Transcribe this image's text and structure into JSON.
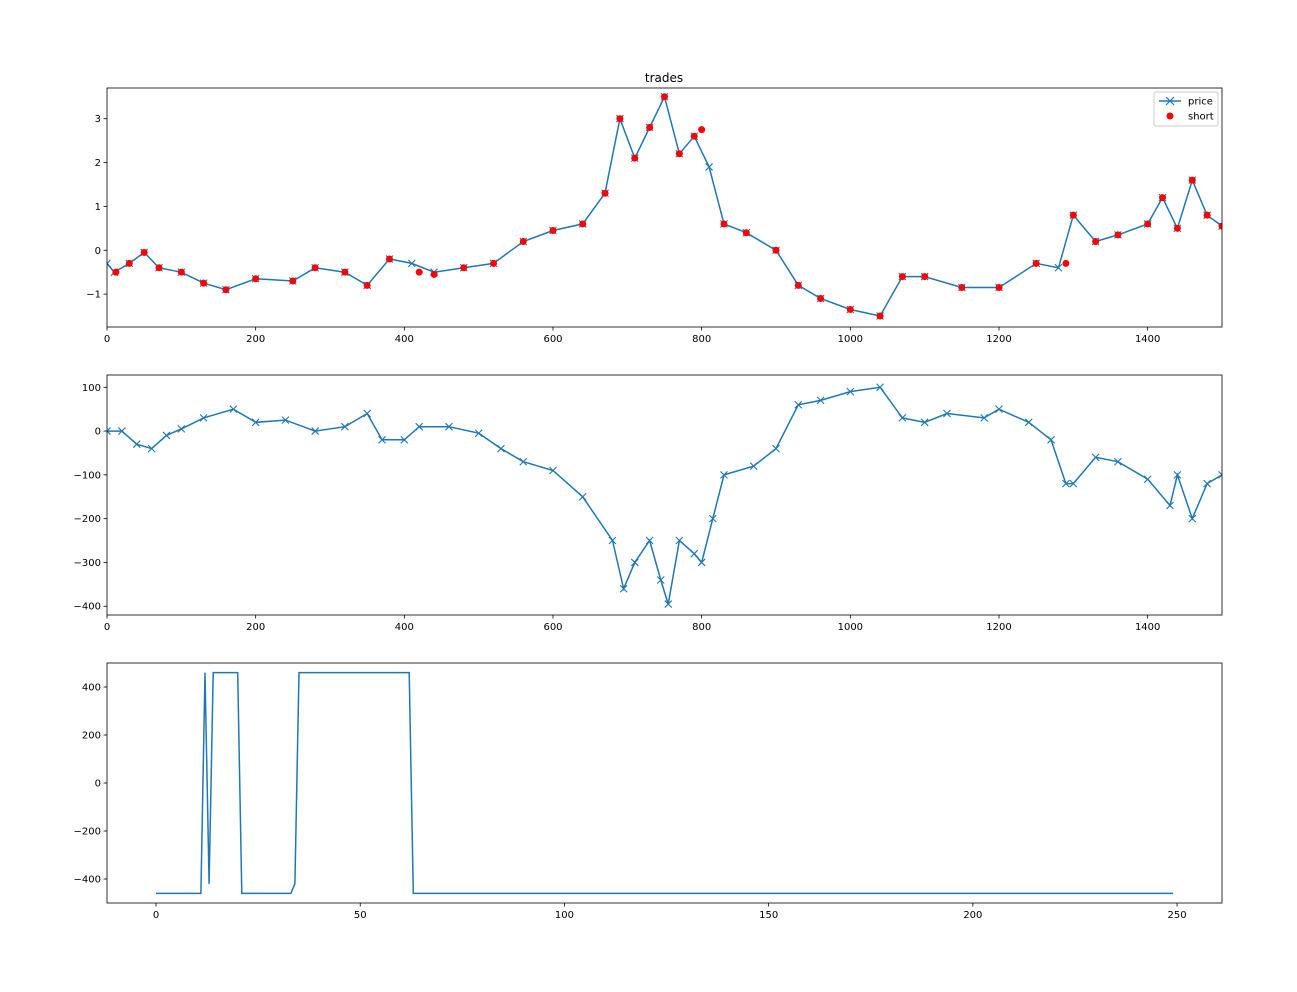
{
  "colors": {
    "price": "#1f77b4",
    "short": "#ff0000"
  },
  "chart_data": [
    {
      "type": "line",
      "title": "trades",
      "xlim": [
        0,
        1500
      ],
      "ylim": [
        -1.75,
        3.7
      ],
      "x_ticks": [
        0,
        200,
        400,
        600,
        800,
        1000,
        1200,
        1400
      ],
      "y_ticks": [
        -1,
        0,
        1,
        2,
        3
      ],
      "legend": {
        "placement": "top-right",
        "entries": [
          "price",
          "short"
        ]
      },
      "series": [
        {
          "name": "price",
          "style": "line-x",
          "x": [
            0,
            10,
            30,
            50,
            70,
            100,
            130,
            160,
            200,
            250,
            280,
            320,
            350,
            380,
            410,
            440,
            480,
            520,
            560,
            600,
            640,
            670,
            690,
            710,
            730,
            750,
            770,
            790,
            810,
            830,
            860,
            900,
            930,
            960,
            1000,
            1040,
            1070,
            1100,
            1150,
            1200,
            1250,
            1280,
            1300,
            1330,
            1360,
            1400,
            1420,
            1440,
            1460,
            1480,
            1500
          ],
          "y": [
            -0.3,
            -0.5,
            -0.3,
            -0.05,
            -0.4,
            -0.5,
            -0.75,
            -0.9,
            -0.65,
            -0.7,
            -0.4,
            -0.5,
            -0.8,
            -0.2,
            -0.3,
            -0.5,
            -0.4,
            -0.3,
            0.2,
            0.45,
            0.6,
            1.3,
            3.0,
            2.1,
            2.8,
            3.5,
            2.2,
            2.6,
            1.9,
            0.6,
            0.4,
            0.0,
            -0.8,
            -1.1,
            -1.35,
            -1.5,
            -0.6,
            -0.6,
            -0.85,
            -0.85,
            -0.3,
            -0.4,
            0.8,
            0.2,
            0.35,
            0.6,
            1.2,
            0.5,
            1.6,
            0.8,
            0.55
          ]
        },
        {
          "name": "short",
          "style": "markers-o",
          "x": [
            12,
            30,
            50,
            70,
            100,
            130,
            160,
            200,
            250,
            280,
            320,
            350,
            380,
            420,
            440,
            480,
            520,
            560,
            600,
            640,
            670,
            690,
            710,
            730,
            750,
            770,
            790,
            800,
            830,
            860,
            900,
            930,
            960,
            1000,
            1040,
            1070,
            1100,
            1150,
            1200,
            1250,
            1290,
            1300,
            1330,
            1360,
            1400,
            1420,
            1440,
            1460,
            1480,
            1500
          ],
          "y": [
            -0.5,
            -0.3,
            -0.05,
            -0.4,
            -0.5,
            -0.75,
            -0.9,
            -0.65,
            -0.7,
            -0.4,
            -0.5,
            -0.8,
            -0.2,
            -0.5,
            -0.55,
            -0.4,
            -0.3,
            0.2,
            0.45,
            0.6,
            1.3,
            3.0,
            2.1,
            2.8,
            3.5,
            2.2,
            2.6,
            2.75,
            0.6,
            0.4,
            0.0,
            -0.8,
            -1.1,
            -1.35,
            -1.5,
            -0.6,
            -0.6,
            -0.85,
            -0.85,
            -0.3,
            -0.3,
            0.8,
            0.2,
            0.35,
            0.6,
            1.2,
            0.5,
            1.6,
            0.8,
            0.55
          ]
        }
      ]
    },
    {
      "type": "line",
      "title": "",
      "xlim": [
        0,
        1500
      ],
      "ylim": [
        -420,
        128
      ],
      "x_ticks": [
        0,
        200,
        400,
        600,
        800,
        1000,
        1200,
        1400
      ],
      "y_ticks": [
        -400,
        -300,
        -200,
        -100,
        0,
        100
      ],
      "series": [
        {
          "style": "line-x",
          "x": [
            0,
            20,
            40,
            60,
            80,
            100,
            130,
            170,
            200,
            240,
            280,
            320,
            350,
            370,
            400,
            420,
            460,
            500,
            530,
            560,
            600,
            640,
            680,
            695,
            710,
            730,
            745,
            755,
            770,
            790,
            800,
            815,
            830,
            870,
            900,
            930,
            960,
            1000,
            1040,
            1070,
            1100,
            1130,
            1180,
            1200,
            1240,
            1270,
            1290,
            1300,
            1330,
            1360,
            1400,
            1430,
            1440,
            1460,
            1480,
            1500
          ],
          "y": [
            0,
            0,
            -30,
            -40,
            -10,
            5,
            30,
            50,
            20,
            25,
            0,
            10,
            40,
            -20,
            -20,
            10,
            10,
            -5,
            -40,
            -70,
            -90,
            -150,
            -250,
            -360,
            -300,
            -250,
            -340,
            -395,
            -250,
            -280,
            -300,
            -200,
            -100,
            -80,
            -40,
            60,
            70,
            90,
            100,
            30,
            20,
            40,
            30,
            50,
            20,
            -20,
            -120,
            -120,
            -60,
            -70,
            -110,
            -170,
            -100,
            -200,
            -120,
            -100
          ]
        }
      ]
    },
    {
      "type": "line",
      "title": "",
      "xlim": [
        -12,
        261
      ],
      "ylim": [
        -500,
        500
      ],
      "x_ticks": [
        0,
        50,
        100,
        150,
        200,
        250
      ],
      "y_ticks": [
        -400,
        -200,
        0,
        200,
        400
      ],
      "series": [
        {
          "style": "line",
          "x": [
            0,
            11,
            12,
            13,
            14,
            20,
            21,
            33,
            34,
            35,
            62,
            63,
            249
          ],
          "y": [
            -460,
            -460,
            460,
            -420,
            460,
            460,
            -460,
            -460,
            -420,
            460,
            460,
            -460,
            -460
          ]
        }
      ]
    }
  ]
}
